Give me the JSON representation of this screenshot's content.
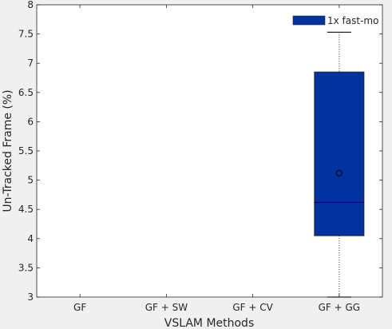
{
  "chart_data": {
    "type": "box",
    "xlabel": "VSLAM Methods",
    "ylabel": "Un-Tracked Frame (%)",
    "ylim": [
      3,
      8
    ],
    "yticks": [
      3,
      3.5,
      4,
      4.5,
      5,
      5.5,
      6,
      6.5,
      7,
      7.5,
      8
    ],
    "ytick_labels": [
      "3",
      "3.5",
      "4",
      "4.5",
      "5",
      "5.5",
      "6",
      "6.5",
      "7",
      "7.5",
      "8"
    ],
    "categories": [
      "GF",
      "GF + SW",
      "GF + CV",
      "GF + GG"
    ],
    "legend": {
      "label": "1x fast-mo",
      "color": "#0033a0",
      "position": "top-right"
    },
    "series": [
      {
        "name": "1x fast-mo",
        "color": "#0033a0",
        "boxes": [
          null,
          null,
          null,
          {
            "whisker_low": 3.0,
            "q1": 4.05,
            "median": 4.62,
            "q3": 6.85,
            "whisker_high": 7.53,
            "mean": 5.12
          }
        ]
      }
    ]
  }
}
